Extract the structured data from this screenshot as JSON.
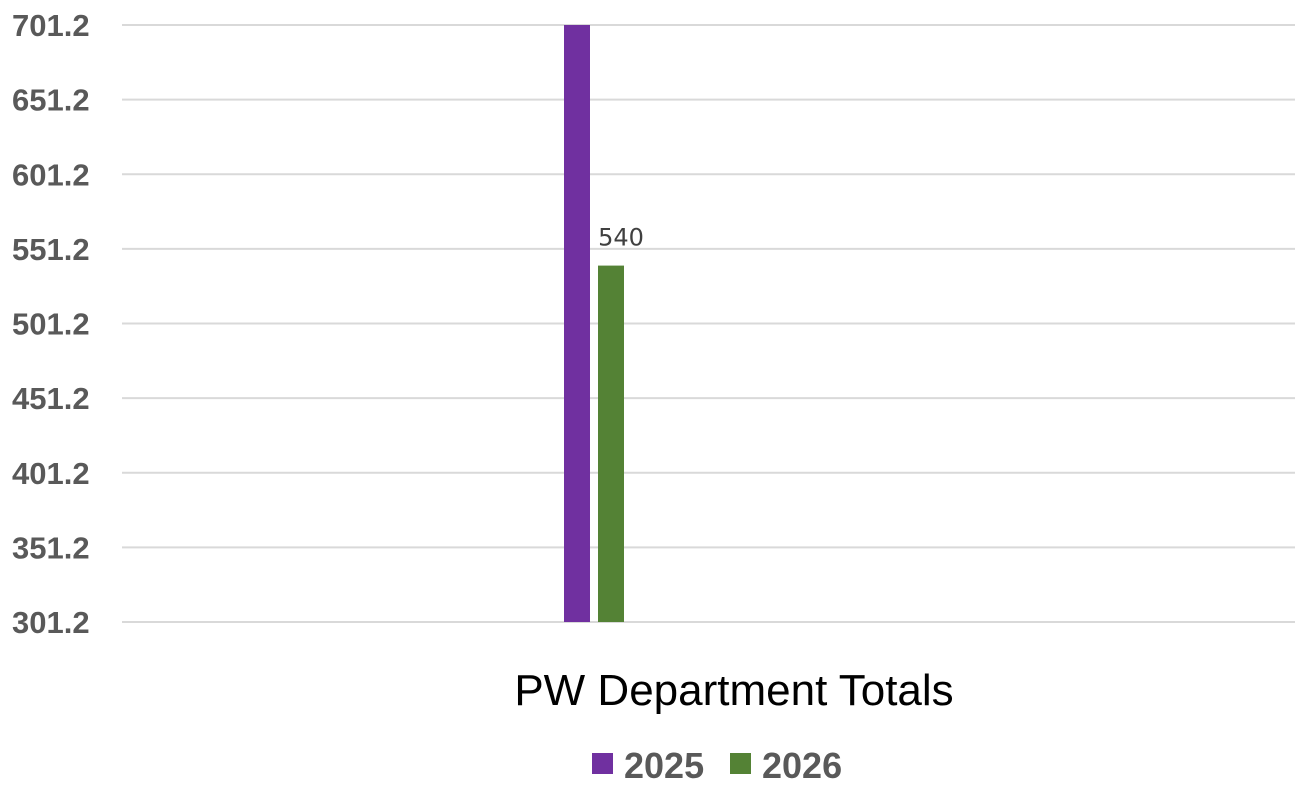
{
  "chart_data": {
    "type": "bar",
    "categories": [
      "PW Department Totals"
    ],
    "series": [
      {
        "name": "2025",
        "values": [
          701.2
        ],
        "color": "#7030a0",
        "data_label": null
      },
      {
        "name": "2026",
        "values": [
          540
        ],
        "color": "#548235",
        "data_label": "540"
      }
    ],
    "y_ticks": [
      "301.2",
      "351.2",
      "401.2",
      "451.2",
      "501.2",
      "551.2",
      "601.2",
      "651.2",
      "701.2"
    ],
    "ylim": [
      301.2,
      701.2
    ],
    "title": "",
    "xlabel": "",
    "ylabel": "",
    "grid": true,
    "legend_position": "bottom"
  }
}
